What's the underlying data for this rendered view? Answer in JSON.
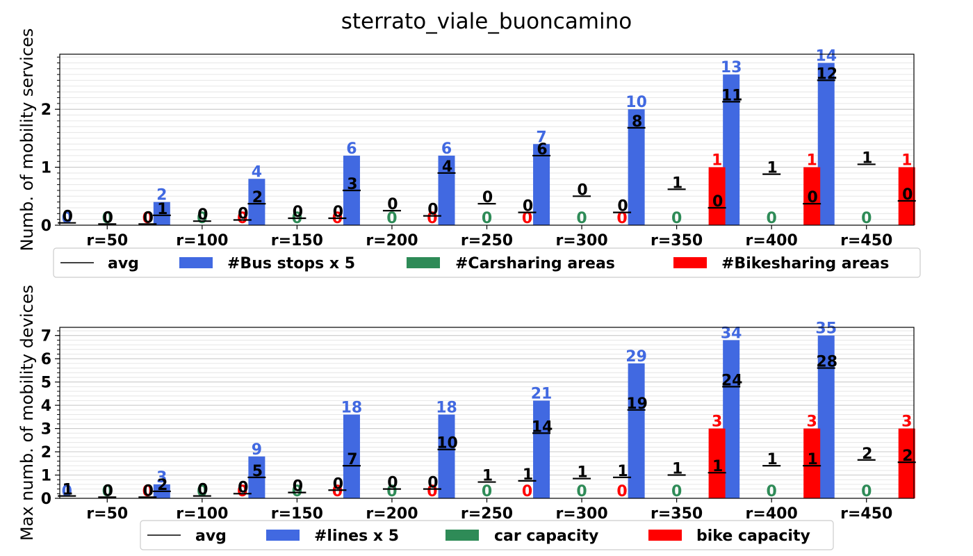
{
  "title": "sterrato_viale_buoncamino",
  "colors": {
    "blue": "#4169E1",
    "green": "#2E8B57",
    "red": "#FF0000",
    "avg": "#000000"
  },
  "chart_data": [
    {
      "type": "bar",
      "ylabel": "Numb. of mobility services",
      "ylim": [
        0,
        2.95
      ],
      "yticks": [
        0,
        1,
        2
      ],
      "categories": [
        "r=50",
        "r=100",
        "r=150",
        "r=200",
        "r=250",
        "r=300",
        "r=350",
        "r=400",
        "r=450"
      ],
      "series": [
        {
          "name": "#Bus stops x 5",
          "color": "#4169E1",
          "values": [
            0,
            0.4,
            0.8,
            1.2,
            1.2,
            1.4,
            2.0,
            2.6,
            2.8
          ],
          "labels": [
            "0",
            "2",
            "4",
            "6",
            "6",
            "7",
            "10",
            "13",
            "14"
          ]
        },
        {
          "name": "#Carsharing areas",
          "color": "#2E8B57",
          "values": [
            0,
            0,
            0,
            0,
            0,
            0,
            0,
            0,
            0
          ],
          "labels": [
            "0",
            "0",
            "0",
            "0",
            "0",
            "0",
            "0",
            "0",
            "0"
          ]
        },
        {
          "name": "#Bikesharing areas",
          "color": "#FF0000",
          "values": [
            0,
            0,
            0,
            0,
            0,
            0,
            1,
            1,
            1
          ],
          "labels": [
            "0",
            "0",
            "0",
            "0",
            "0",
            "0",
            "1",
            "1",
            "1"
          ]
        }
      ],
      "averages": [
        {
          "values": [
            0.04,
            0.17,
            0.37,
            0.6,
            0.9,
            1.2,
            1.68,
            2.13,
            2.5
          ],
          "labels": [
            "0",
            "1",
            "2",
            "3",
            "4",
            "6",
            "8",
            "11",
            "12"
          ]
        },
        {
          "values": [
            0.02,
            0.07,
            0.12,
            0.25,
            0.37,
            0.5,
            0.62,
            0.88,
            1.05
          ],
          "labels": [
            "0",
            "0",
            "0",
            "0",
            "0",
            "0",
            "1",
            "1",
            "1"
          ]
        },
        {
          "values": [
            0.02,
            0.09,
            0.12,
            0.16,
            0.22,
            0.22,
            0.3,
            0.37,
            0.42
          ],
          "labels": [
            "0",
            "0",
            "0",
            "0",
            "0",
            "0",
            "0",
            "0",
            "0"
          ]
        }
      ],
      "legend": [
        "avg",
        "#Bus stops x 5",
        "#Carsharing areas",
        "#Bikesharing areas"
      ]
    },
    {
      "type": "bar",
      "ylabel": "Max numb. of mobility devices",
      "ylim": [
        0,
        7.35
      ],
      "yticks": [
        0,
        1,
        2,
        3,
        4,
        5,
        6,
        7
      ],
      "categories": [
        "r=50",
        "r=100",
        "r=150",
        "r=200",
        "r=250",
        "r=300",
        "r=350",
        "r=400",
        "r=450"
      ],
      "series": [
        {
          "name": "#lines x 5",
          "color": "#4169E1",
          "values": [
            0,
            0.6,
            1.8,
            3.6,
            3.6,
            4.2,
            5.8,
            6.8,
            7.0
          ],
          "labels": [
            "0",
            "3",
            "9",
            "18",
            "18",
            "21",
            "29",
            "34",
            "35"
          ]
        },
        {
          "name": "car capacity",
          "color": "#2E8B57",
          "values": [
            0,
            0,
            0,
            0,
            0,
            0,
            0,
            0,
            0
          ],
          "labels": [
            "0",
            "0",
            "0",
            "0",
            "0",
            "0",
            "0",
            "0",
            "0"
          ]
        },
        {
          "name": "bike capacity",
          "color": "#FF0000",
          "values": [
            0,
            0,
            0,
            0,
            0,
            0,
            3,
            3,
            3
          ],
          "labels": [
            "0",
            "0",
            "0",
            "0",
            "0",
            "0",
            "3",
            "3",
            "3"
          ]
        }
      ],
      "averages": [
        {
          "values": [
            0.1,
            0.3,
            0.9,
            1.4,
            2.1,
            2.8,
            3.8,
            4.8,
            5.6
          ],
          "labels": [
            "1",
            "2",
            "5",
            "7",
            "10",
            "14",
            "19",
            "24",
            "28"
          ]
        },
        {
          "values": [
            0.05,
            0.1,
            0.25,
            0.4,
            0.7,
            0.85,
            1.0,
            1.4,
            1.65
          ],
          "labels": [
            "0",
            "0",
            "0",
            "0",
            "1",
            "1",
            "1",
            "1",
            "2"
          ]
        },
        {
          "values": [
            0.05,
            0.2,
            0.35,
            0.4,
            0.75,
            0.9,
            1.1,
            1.4,
            1.55
          ],
          "labels": [
            "0",
            "0",
            "0",
            "0",
            "1",
            "1",
            "1",
            "1",
            "2"
          ]
        }
      ],
      "legend": [
        "avg",
        "#lines x 5",
        "car capacity",
        "bike capacity"
      ]
    }
  ]
}
